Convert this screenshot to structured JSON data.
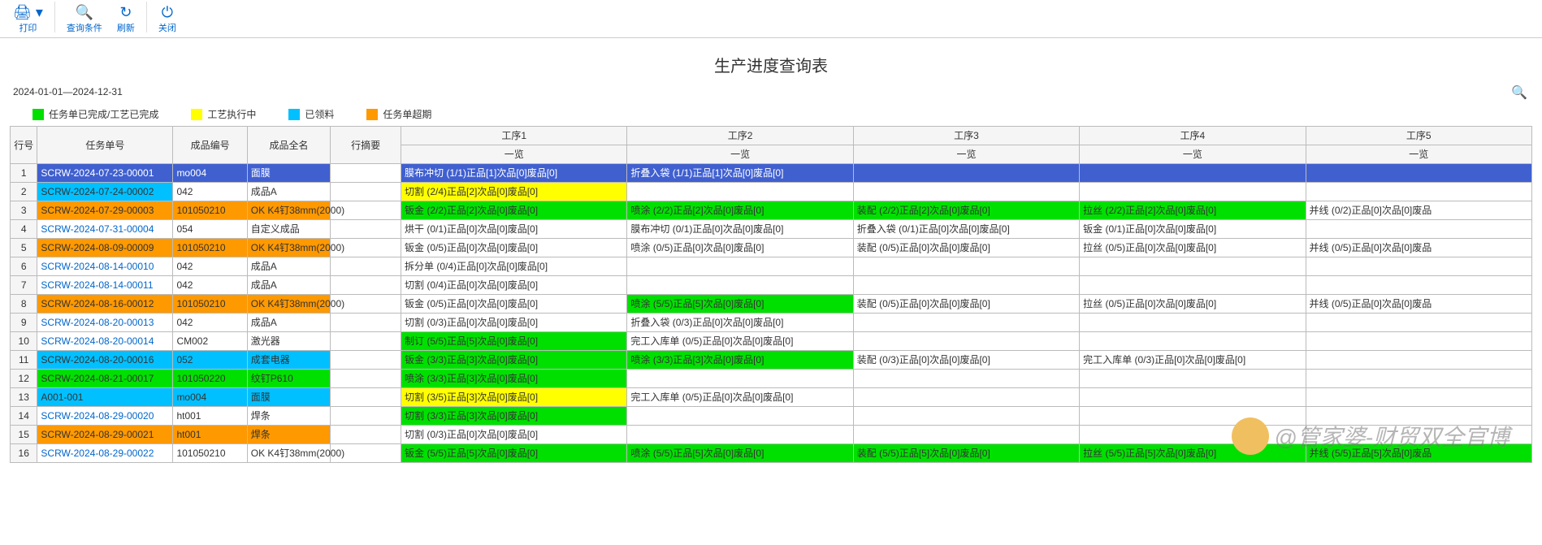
{
  "toolbar": {
    "print": "打印",
    "query": "查询条件",
    "refresh": "刷新",
    "close": "关闭"
  },
  "title": "生产进度查询表",
  "date_range": "2024-01-01—2024-12-31",
  "legend": [
    {
      "label": "任务单已完成/工艺已完成",
      "color": "#00e000"
    },
    {
      "label": "工艺执行中",
      "color": "#ffff00"
    },
    {
      "label": "已领料",
      "color": "#00c0ff"
    },
    {
      "label": "任务单超期",
      "color": "#ff9900"
    }
  ],
  "colors": {
    "green": "#00e000",
    "yellow": "#ffff00",
    "cyan": "#00c0ff",
    "orange": "#ff9900",
    "blue": "#4060d0",
    "white": "#ffffff"
  },
  "headers": {
    "rownum": "行号",
    "task_no": "任务单号",
    "prod_code": "成品编号",
    "prod_name": "成品全名",
    "summary": "行摘要",
    "proc1": "工序1",
    "proc2": "工序2",
    "proc3": "工序3",
    "proc4": "工序4",
    "proc5": "工序5",
    "overview": "一览"
  },
  "rows": [
    {
      "n": "1",
      "task": "SCRW-2024-07-23-00001",
      "task_bg": "#4060d0",
      "code": "mo004",
      "code_bg": "#4060d0",
      "name": "面膜",
      "name_bg": "#4060d0",
      "p1": "膜布冲切 (1/1)正品[1]次品[0]废品[0]",
      "p1_bg": "#4060d0",
      "p2": "折叠入袋 (1/1)正品[1]次品[0]废品[0]",
      "p2_bg": "#4060d0",
      "p3": "",
      "p3_bg": "#4060d0",
      "p4": "",
      "p4_bg": "#4060d0",
      "p5": "",
      "p5_bg": "#4060d0"
    },
    {
      "n": "2",
      "task": "SCRW-2024-07-24-00002",
      "task_bg": "#00c0ff",
      "code": "042",
      "name": "成品A",
      "p1": "切割 (2/4)正品[2]次品[0]废品[0]",
      "p1_bg": "#ffff00",
      "p2": "",
      "p3": "",
      "p4": "",
      "p5": ""
    },
    {
      "n": "3",
      "task": "SCRW-2024-07-29-00003",
      "task_bg": "#ff9900",
      "code": "101050210",
      "code_bg": "#ff9900",
      "name": "OK K4钉38mm(2000)",
      "name_bg": "#ff9900",
      "p1": "钣金 (2/2)正品[2]次品[0]废品[0]",
      "p1_bg": "#00e000",
      "p2": "喷涂 (2/2)正品[2]次品[0]废品[0]",
      "p2_bg": "#00e000",
      "p3": "装配 (2/2)正品[2]次品[0]废品[0]",
      "p3_bg": "#00e000",
      "p4": "拉丝 (2/2)正品[2]次品[0]废品[0]",
      "p4_bg": "#00e000",
      "p5": "并线 (0/2)正品[0]次品[0]废品"
    },
    {
      "n": "4",
      "task": "SCRW-2024-07-31-00004",
      "code": "054",
      "name": "自定义成品",
      "p1": "烘干 (0/1)正品[0]次品[0]废品[0]",
      "p2": "膜布冲切 (0/1)正品[0]次品[0]废品[0]",
      "p3": "折叠入袋 (0/1)正品[0]次品[0]废品[0]",
      "p4": "钣金 (0/1)正品[0]次品[0]废品[0]",
      "p5": ""
    },
    {
      "n": "5",
      "task": "SCRW-2024-08-09-00009",
      "task_bg": "#ff9900",
      "code": "101050210",
      "code_bg": "#ff9900",
      "name": "OK K4钉38mm(2000)",
      "name_bg": "#ff9900",
      "p1": "钣金 (0/5)正品[0]次品[0]废品[0]",
      "p2": "喷涂 (0/5)正品[0]次品[0]废品[0]",
      "p3": "装配 (0/5)正品[0]次品[0]废品[0]",
      "p4": "拉丝 (0/5)正品[0]次品[0]废品[0]",
      "p5": "并线 (0/5)正品[0]次品[0]废品"
    },
    {
      "n": "6",
      "task": "SCRW-2024-08-14-00010",
      "code": "042",
      "name": "成品A",
      "p1": "拆分单 (0/4)正品[0]次品[0]废品[0]",
      "p2": "",
      "p3": "",
      "p4": "",
      "p5": ""
    },
    {
      "n": "7",
      "task": "SCRW-2024-08-14-00011",
      "code": "042",
      "name": "成品A",
      "p1": "切割 (0/4)正品[0]次品[0]废品[0]",
      "p2": "",
      "p3": "",
      "p4": "",
      "p5": ""
    },
    {
      "n": "8",
      "task": "SCRW-2024-08-16-00012",
      "task_bg": "#ff9900",
      "code": "101050210",
      "code_bg": "#ff9900",
      "name": "OK K4钉38mm(2000)",
      "name_bg": "#ff9900",
      "p1": "钣金 (0/5)正品[0]次品[0]废品[0]",
      "p2": "喷涂 (5/5)正品[5]次品[0]废品[0]",
      "p2_bg": "#00e000",
      "p3": "装配 (0/5)正品[0]次品[0]废品[0]",
      "p4": "拉丝 (0/5)正品[0]次品[0]废品[0]",
      "p5": "并线 (0/5)正品[0]次品[0]废品"
    },
    {
      "n": "9",
      "task": "SCRW-2024-08-20-00013",
      "code": "042",
      "name": "成品A",
      "p1": "切割 (0/3)正品[0]次品[0]废品[0]",
      "p2": "折叠入袋 (0/3)正品[0]次品[0]废品[0]",
      "p3": "",
      "p4": "",
      "p5": ""
    },
    {
      "n": "10",
      "task": "SCRW-2024-08-20-00014",
      "code": "CM002",
      "name": "激光器",
      "p1": "制订 (5/5)正品[5]次品[0]废品[0]",
      "p1_bg": "#00e000",
      "p2": "完工入库单 (0/5)正品[0]次品[0]废品[0]",
      "p3": "",
      "p4": "",
      "p5": ""
    },
    {
      "n": "11",
      "task": "SCRW-2024-08-20-00016",
      "task_bg": "#00c0ff",
      "code": "052",
      "code_bg": "#00c0ff",
      "name": "成套电器",
      "name_bg": "#00c0ff",
      "p1": "钣金 (3/3)正品[3]次品[0]废品[0]",
      "p1_bg": "#00e000",
      "p2": "喷涂 (3/3)正品[3]次品[0]废品[0]",
      "p2_bg": "#00e000",
      "p3": "装配 (0/3)正品[0]次品[0]废品[0]",
      "p4": "完工入库单 (0/3)正品[0]次品[0]废品[0]",
      "p5": ""
    },
    {
      "n": "12",
      "task": "SCRW-2024-08-21-00017",
      "task_bg": "#00e000",
      "code": "101050220",
      "code_bg": "#00e000",
      "name": "纹钉P610",
      "name_bg": "#00e000",
      "p1": "喷涂 (3/3)正品[3]次品[0]废品[0]",
      "p1_bg": "#00e000",
      "p2": "",
      "p3": "",
      "p4": "",
      "p5": ""
    },
    {
      "n": "13",
      "task": "A001-001",
      "task_bg": "#00c0ff",
      "code": "mo004",
      "code_bg": "#00c0ff",
      "name": "面膜",
      "name_bg": "#00c0ff",
      "p1": "切割 (3/5)正品[3]次品[0]废品[0]",
      "p1_bg": "#ffff00",
      "p2": "完工入库单 (0/5)正品[0]次品[0]废品[0]",
      "p3": "",
      "p4": "",
      "p5": ""
    },
    {
      "n": "14",
      "task": "SCRW-2024-08-29-00020",
      "code": "ht001",
      "name": "焊条",
      "p1": "切割 (3/3)正品[3]次品[0]废品[0]",
      "p1_bg": "#00e000",
      "p2": "",
      "p3": "",
      "p4": "",
      "p5": ""
    },
    {
      "n": "15",
      "task": "SCRW-2024-08-29-00021",
      "task_bg": "#ff9900",
      "code": "ht001",
      "code_bg": "#ff9900",
      "name": "焊条",
      "name_bg": "#ff9900",
      "p1": "切割 (0/3)正品[0]次品[0]废品[0]",
      "p2": "",
      "p3": "",
      "p4": "",
      "p5": ""
    },
    {
      "n": "16",
      "task": "SCRW-2024-08-29-00022",
      "code": "101050210",
      "name": "OK K4钉38mm(2000)",
      "p1": "钣金 (5/5)正品[5]次品[0]废品[0]",
      "p1_bg": "#00e000",
      "p2": "喷涂 (5/5)正品[5]次品[0]废品[0]",
      "p2_bg": "#00e000",
      "p3": "装配 (5/5)正品[5]次品[0]废品[0]",
      "p3_bg": "#00e000",
      "p4": "拉丝 (5/5)正品[5]次品[0]废品[0]",
      "p4_bg": "#00e000",
      "p5": "并线 (5/5)正品[5]次品[0]废品",
      "p5_bg": "#00e000"
    }
  ],
  "watermark": "@管家婆-财贸双全官博"
}
